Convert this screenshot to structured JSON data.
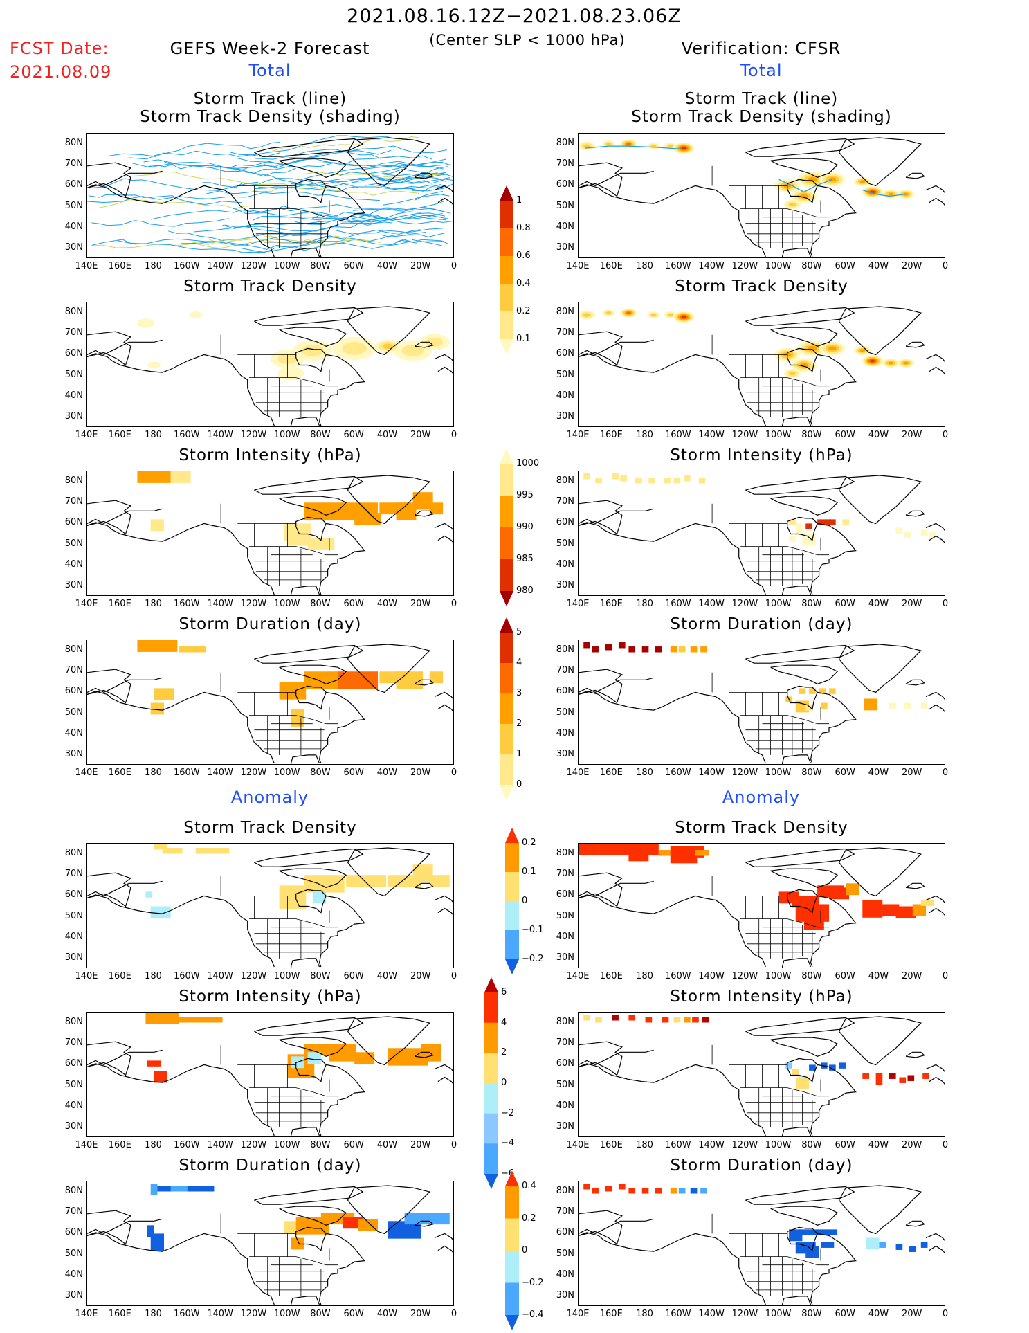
{
  "header": {
    "date_range": "2021.08.16.12Z−2021.08.23.06Z",
    "condition": "(Center SLP < 1000 hPa)",
    "fcst_date_label": "FCST Date:",
    "fcst_date_value": "2021.08.09",
    "left_title": "GEFS Week-2 Forecast",
    "right_title": "Verification: CFSR",
    "total_label": "Total",
    "anomaly_label": "Anomaly"
  },
  "panel_titles": {
    "track_line": "Storm Track (line)",
    "track_shading": "Storm Track Density (shading)",
    "density": "Storm Track Density",
    "intensity": "Storm Intensity (hPa)",
    "duration": "Storm Duration (day)"
  },
  "axes": {
    "lat_labels": [
      "80N",
      "70N",
      "60N",
      "50N",
      "40N",
      "30N"
    ],
    "lon_labels": [
      "140E",
      "160E",
      "180",
      "160W",
      "140W",
      "120W",
      "100W",
      "80W",
      "60W",
      "40W",
      "20W",
      "0"
    ]
  },
  "colorbars": {
    "density_total": {
      "labels": [
        "1",
        "0.8",
        "0.6",
        "0.4",
        "0.2",
        "0.1"
      ],
      "colors": [
        "#a50000",
        "#e03000",
        "#ff6a00",
        "#ffa000",
        "#ffcc40",
        "#ffe98a",
        "#fff8c0"
      ]
    },
    "intensity_total": {
      "labels": [
        "1000",
        "995",
        "990",
        "985",
        "980"
      ],
      "colors": [
        "#fff8c0",
        "#ffe98a",
        "#ffa000",
        "#ff6a00",
        "#e03000",
        "#a50000"
      ]
    },
    "duration_total": {
      "labels": [
        "5",
        "4",
        "3",
        "2",
        "1",
        "0"
      ],
      "colors": [
        "#a50000",
        "#e03000",
        "#ff6a00",
        "#ffa000",
        "#ffcc40",
        "#ffe98a",
        "#fff8c0"
      ]
    },
    "density_anom": {
      "labels": [
        "0.2",
        "0.1",
        "0",
        "−0.1",
        "−0.2"
      ],
      "colors": [
        "#ff3000",
        "#ff9a00",
        "#ffe070",
        "#aeeef8",
        "#4aa8ff",
        "#1060e0"
      ]
    },
    "intensity_anom": {
      "labels": [
        "6",
        "4",
        "2",
        "0",
        "−2",
        "−4",
        "−6"
      ],
      "colors": [
        "#b50000",
        "#ff3000",
        "#ff9a00",
        "#ffe070",
        "#aeeef8",
        "#8ac8ff",
        "#4aa8ff",
        "#1060e0"
      ]
    },
    "duration_anom": {
      "labels": [
        "0.4",
        "0.2",
        "0",
        "−0.2",
        "−0.4"
      ],
      "colors": [
        "#ff3000",
        "#ff9a00",
        "#ffe070",
        "#aeeef8",
        "#4aa8ff",
        "#1060e0"
      ]
    }
  }
}
